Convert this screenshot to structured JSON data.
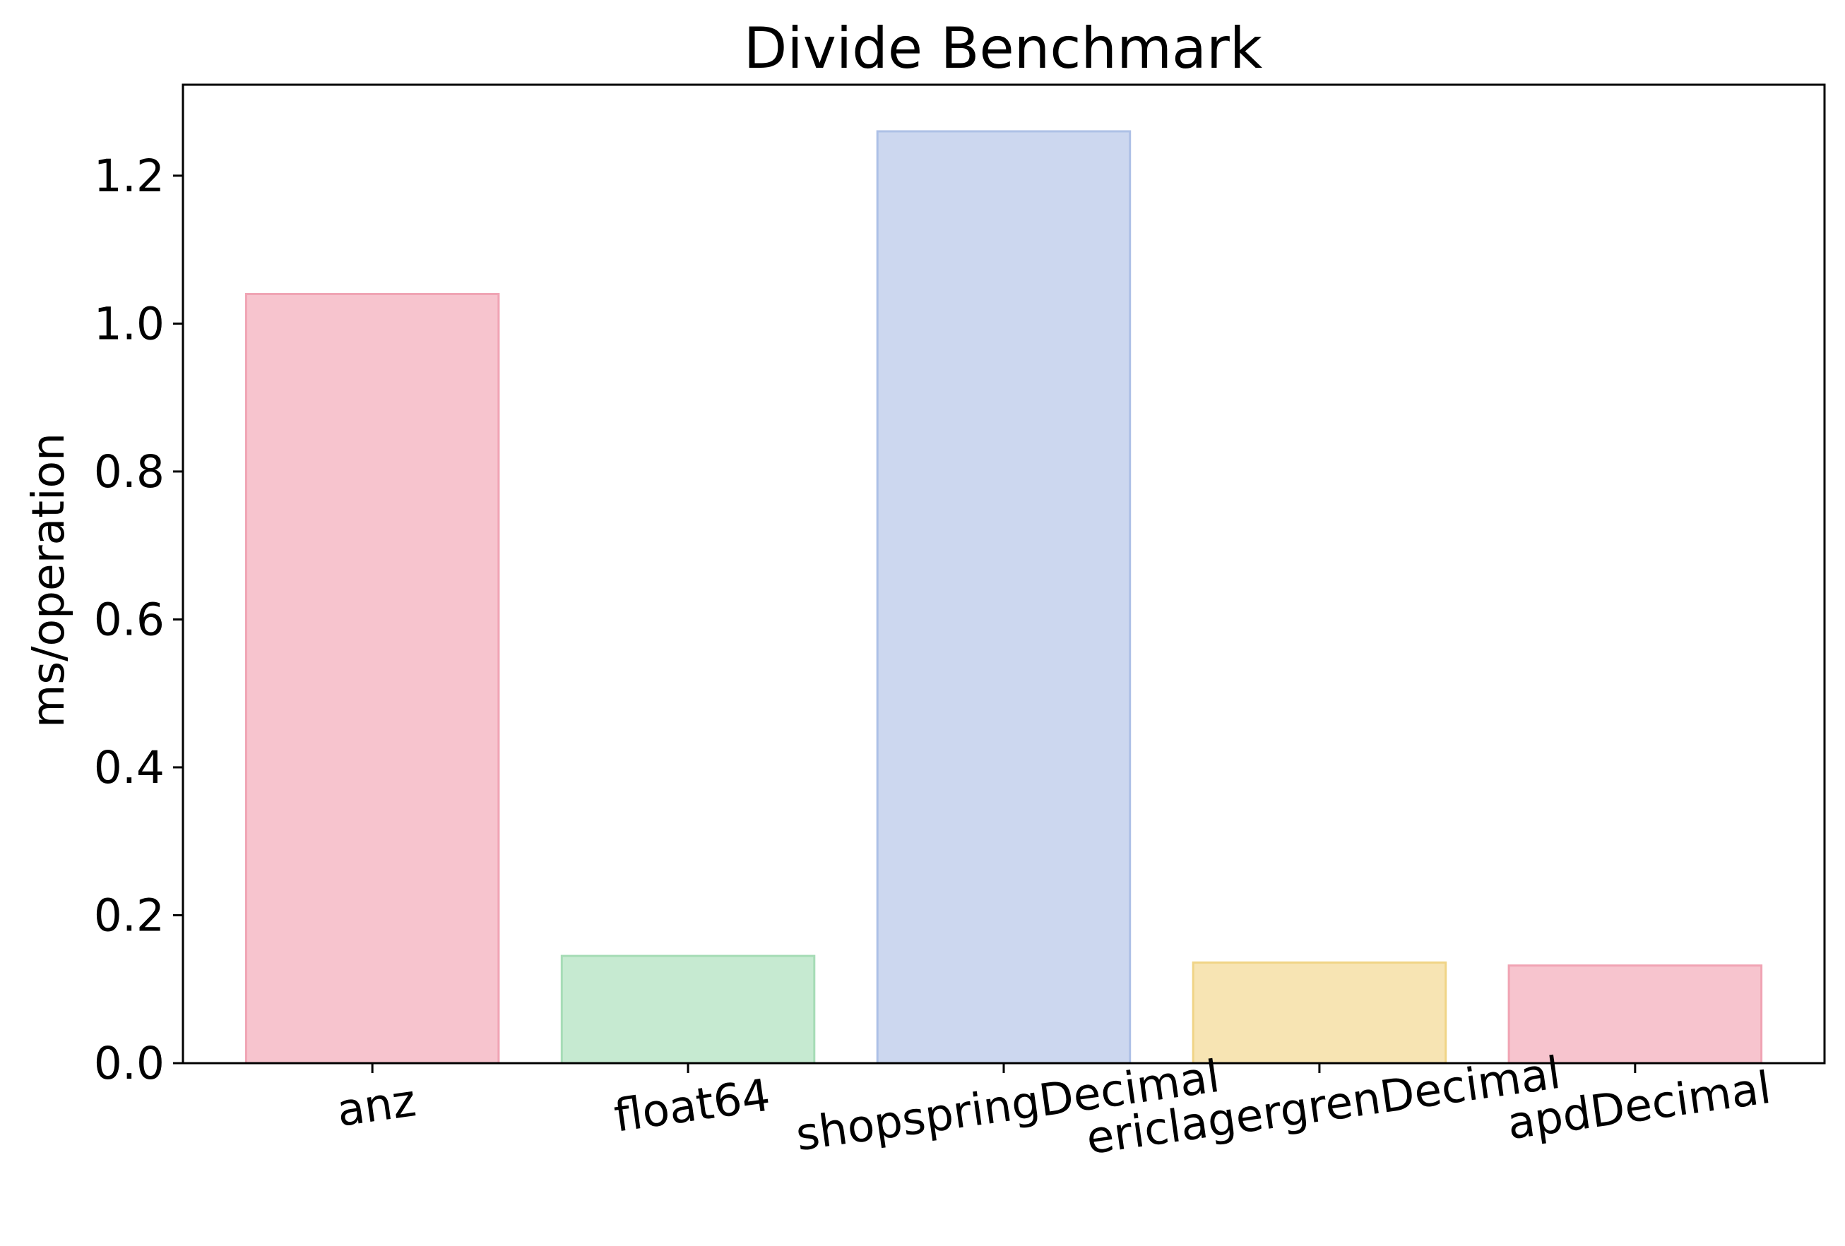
{
  "chart_data": {
    "type": "bar",
    "title": "Divide Benchmark",
    "xlabel": "",
    "ylabel": "ms/operation",
    "categories": [
      "anz",
      "float64",
      "shopspringDecimal",
      "ericlagergrenDecimal",
      "apdDecimal"
    ],
    "values": [
      1.04,
      0.145,
      1.26,
      0.136,
      0.132
    ],
    "bar_colors": [
      "#f7c4ce",
      "#c6ead1",
      "#ccd7ef",
      "#f7e4b3",
      "#f7c4ce"
    ],
    "bar_edge_colors": [
      "#f0a4b4",
      "#a6dcb6",
      "#adc0e6",
      "#f0d486",
      "#f0a4b4"
    ],
    "yticks": [
      0.0,
      0.2,
      0.4,
      0.6,
      0.8,
      1.0,
      1.2
    ],
    "ytick_labels": [
      "0.0",
      "0.2",
      "0.4",
      "0.6",
      "0.8",
      "1.0",
      "1.2"
    ],
    "ylim": [
      0,
      1.323
    ],
    "x_tick_rotation_deg": 8,
    "grid": false,
    "legend": "none"
  }
}
